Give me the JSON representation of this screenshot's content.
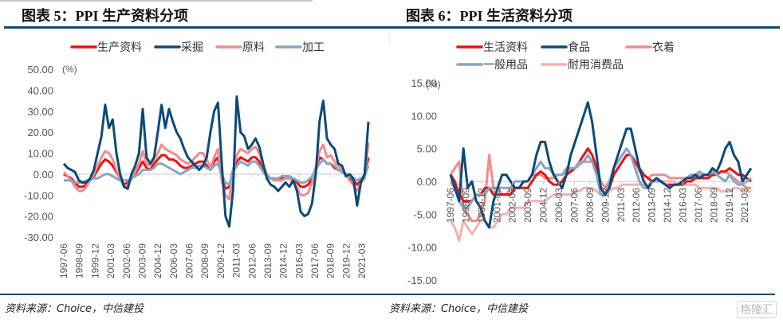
{
  "left": {
    "title": "图表 5：PPI 生产资料分项",
    "source": "资料来源：Choice，中信建投",
    "chart_data": {
      "type": "line",
      "title": "图表 5：PPI 生产资料分项",
      "ylabel": "(%)",
      "xlabel": "",
      "ylim": [
        -30,
        50
      ],
      "yticks": [
        "50.00",
        "40.00",
        "30.00",
        "20.00",
        "10.00",
        "0.00",
        "-10.00",
        "-20.00",
        "-30.00"
      ],
      "xticks": [
        "1997-06",
        "1998-09",
        "1999-12",
        "2001-03",
        "2002-06",
        "2003-09",
        "2004-12",
        "2006-03",
        "2007-06",
        "2008-09",
        "2009-12",
        "2011-03",
        "2012-06",
        "2013-09",
        "2014-12",
        "2016-03",
        "2017-06",
        "2018-09",
        "2019-12",
        "2021-03"
      ],
      "legend": "top-center",
      "x_start": "1997-06",
      "x_step": "quarter",
      "series": [
        {
          "name": "生产资料",
          "color": "#ee1111",
          "values": [
            0,
            -1,
            -2,
            -4,
            -6,
            -6,
            -5,
            -3,
            -1,
            2,
            5,
            7,
            6,
            4,
            1,
            -2,
            -5,
            -4,
            -2,
            0,
            3,
            6,
            3,
            2,
            5,
            7,
            9,
            9,
            7,
            7,
            6,
            4,
            3,
            3,
            4,
            5,
            6,
            6,
            4,
            2,
            6,
            8,
            -2,
            -7,
            -6,
            2,
            6,
            8,
            7,
            6,
            8,
            8,
            6,
            2,
            -1,
            -2,
            -2,
            -3,
            -2,
            -2,
            -1,
            -3,
            -4,
            -6,
            -6,
            -5,
            -2,
            3,
            8,
            7,
            5,
            5,
            3,
            2,
            1,
            0,
            -2,
            -3,
            -5,
            -3,
            -1,
            8
          ]
        },
        {
          "name": "采掘",
          "color": "#0b4a78",
          "values": [
            5,
            3,
            2,
            1,
            -3,
            -4,
            -4,
            -2,
            2,
            10,
            18,
            33,
            22,
            26,
            10,
            0,
            -6,
            -7,
            0,
            4,
            10,
            31,
            8,
            5,
            8,
            20,
            33,
            22,
            31,
            25,
            20,
            17,
            12,
            8,
            6,
            4,
            2,
            4,
            8,
            20,
            30,
            34,
            5,
            -20,
            -25,
            -8,
            37,
            20,
            18,
            12,
            14,
            17,
            13,
            5,
            -2,
            -5,
            -6,
            -8,
            -6,
            -4,
            -6,
            -3,
            -8,
            -18,
            -20,
            -19,
            -14,
            0,
            25,
            35,
            17,
            14,
            12,
            5,
            4,
            -1,
            0,
            -2,
            -15,
            -4,
            0,
            25
          ]
        },
        {
          "name": "原料",
          "color": "#f28b8b",
          "values": [
            1,
            -1,
            -3,
            -6,
            -8,
            -8,
            -6,
            -3,
            0,
            4,
            8,
            11,
            10,
            7,
            2,
            -2,
            -6,
            -5,
            -2,
            1,
            5,
            11,
            5,
            4,
            7,
            10,
            14,
            12,
            11,
            10,
            9,
            7,
            6,
            5,
            6,
            8,
            10,
            10,
            7,
            3,
            8,
            12,
            -3,
            -10,
            -12,
            2,
            9,
            12,
            11,
            10,
            12,
            13,
            10,
            4,
            0,
            -2,
            -3,
            -3,
            -3,
            -2,
            -2,
            -4,
            -6,
            -10,
            -10,
            -9,
            -4,
            3,
            11,
            14,
            8,
            9,
            6,
            4,
            2,
            0,
            -3,
            -5,
            -8,
            -4,
            -2,
            15
          ]
        },
        {
          "name": "加工",
          "color": "#86a6c2",
          "values": [
            -3,
            -3,
            -3,
            -4,
            -4,
            -4,
            -3,
            -3,
            -2,
            -2,
            -1,
            0,
            0,
            -1,
            -2,
            -3,
            -3,
            -3,
            -2,
            -1,
            0,
            2,
            2,
            2,
            3,
            5,
            5,
            4,
            3,
            2,
            1,
            0,
            1,
            2,
            3,
            3,
            4,
            4,
            3,
            2,
            4,
            5,
            0,
            -4,
            -5,
            1,
            4,
            6,
            5,
            4,
            6,
            6,
            4,
            1,
            -1,
            -2,
            -2,
            -2,
            -1,
            -1,
            -1,
            -2,
            -3,
            -4,
            -4,
            -3,
            -1,
            2,
            5,
            7,
            5,
            5,
            4,
            2,
            1,
            0,
            -1,
            -2,
            -3,
            -2,
            -1,
            4
          ]
        }
      ]
    }
  },
  "right": {
    "title": "图表 6：PPI 生活资料分项",
    "source": "资料来源：Choice，中信建投",
    "watermark": "格隆汇",
    "chart_data": {
      "type": "line",
      "title": "图表 6：PPI 生活资料分项",
      "ylabel": "(%)",
      "xlabel": "",
      "ylim": [
        -15,
        15
      ],
      "yticks": [
        "15.00",
        "10.00",
        "5.00",
        "0.00",
        "-5.00",
        "-10.00",
        "-15.00"
      ],
      "xticks": [
        "1997-06",
        "1998-09",
        "1999-12",
        "2001-03",
        "2002-06",
        "2003-09",
        "2004-12",
        "2006-03",
        "2007-06",
        "2008-09",
        "2009-12",
        "2011-03",
        "2012-06",
        "2013-09",
        "2014-12",
        "2016-03",
        "2017-06",
        "2018-09",
        "2019-12",
        "2021-03"
      ],
      "legend": "top-center",
      "x_start": "1997-06",
      "x_step": "quarter",
      "series": [
        {
          "name": "生活资料",
          "color": "#ee1111",
          "values": [
            1,
            0,
            -2,
            -3,
            -3,
            -3,
            -2,
            -2,
            -1,
            -1,
            -2,
            -2,
            -2,
            -2,
            -2,
            -1,
            -1,
            -1,
            -1,
            0,
            1,
            1.5,
            1,
            0,
            -0.5,
            -0.5,
            0,
            1,
            1.5,
            2,
            3,
            4,
            5,
            4,
            2,
            -1,
            -2,
            -1,
            1,
            2,
            3,
            4,
            4,
            3,
            2,
            1,
            0.5,
            0,
            0,
            0,
            -0.5,
            -0.5,
            -0.5,
            -0.5,
            -0.5,
            0,
            0,
            0.5,
            0.5,
            0.5,
            0.5,
            1,
            1,
            1.5,
            1.5,
            2,
            1.5,
            1,
            1,
            0.5,
            0
          ]
        },
        {
          "name": "食品",
          "color": "#0b4a78",
          "values": [
            1,
            -1,
            -3,
            5,
            -1,
            0,
            -3,
            -4,
            -6,
            -7,
            -3,
            -1,
            1,
            1,
            0,
            -1,
            -1,
            0,
            0,
            1,
            4,
            6,
            6,
            3,
            1,
            0,
            -1,
            1,
            4,
            6,
            8,
            10,
            12,
            9,
            4,
            -1,
            -2,
            -1,
            2,
            4,
            6,
            8,
            8,
            5,
            2,
            0,
            -1,
            0,
            0.5,
            0,
            -0.5,
            -1,
            -0.5,
            -0.5,
            0,
            0.5,
            0.5,
            1,
            0.5,
            1,
            1,
            2,
            1.5,
            3,
            5,
            6,
            4,
            3,
            0,
            1,
            2
          ]
        },
        {
          "name": "衣着",
          "color": "#f28b8b",
          "values": [
            1,
            2,
            3,
            -4,
            -5,
            -6,
            -6,
            -5,
            -3,
            4,
            -1,
            -1,
            -2,
            -2,
            -1,
            -1,
            -1,
            0,
            0,
            1,
            1,
            1,
            0.5,
            0.5,
            0.5,
            1,
            1,
            1.5,
            2,
            2,
            2.5,
            3,
            3,
            3,
            2,
            0,
            -1,
            0,
            1,
            2,
            3,
            4,
            4,
            3,
            1.5,
            1,
            0.5,
            1,
            1,
            1,
            1,
            0.5,
            0.5,
            0.5,
            0.5,
            0.5,
            1,
            1,
            1,
            0.5,
            0.5,
            1,
            1,
            1.5,
            1.5,
            1,
            0.5,
            0,
            -0.5,
            -1,
            -1
          ]
        },
        {
          "name": "一般用品",
          "color": "#86a6c2",
          "values": [
            0,
            -1,
            -3,
            -4,
            -4,
            -3,
            -2,
            -2,
            -2,
            -1,
            -1,
            -1,
            -1,
            -1,
            -1,
            0,
            0,
            0,
            0,
            1,
            2,
            3,
            2,
            2,
            1,
            1,
            1,
            2,
            2,
            2,
            3,
            3,
            4,
            3,
            1,
            -2,
            -2,
            0,
            2,
            3,
            4,
            5,
            4,
            2,
            0,
            -1,
            -1,
            0,
            0,
            0,
            -0.5,
            -1,
            -0.5,
            -0.5,
            0,
            0.5,
            1,
            1,
            1.5,
            1,
            1,
            1.5,
            1,
            0.5,
            0,
            1,
            0,
            -0.5,
            -0.5,
            0,
            0.5
          ]
        },
        {
          "name": "耐用消费品",
          "color": "#f6b0b0",
          "values": [
            -6,
            -7,
            -9,
            -6,
            -7,
            -8,
            -7,
            -6,
            -6,
            -7,
            -7,
            -6,
            -5,
            -5,
            -4,
            -4,
            -4,
            -4,
            -3,
            -3,
            -3,
            -3,
            -3,
            -2.5,
            -2,
            -2,
            -2,
            -2,
            -2,
            -1.5,
            -1.5,
            -1,
            -1,
            -1,
            -1.5,
            -2,
            -2,
            -1.5,
            -1,
            -1,
            -0.5,
            -0.5,
            -0.5,
            -0.5,
            -0.5,
            -0.5,
            -0.5,
            0,
            0,
            0,
            0,
            0,
            0,
            -0.5,
            -0.5,
            -0.5,
            -0.5,
            -0.5,
            -1,
            -1,
            -1,
            -1,
            -1,
            -1.5,
            -1.5,
            -1.5,
            -1,
            -1,
            -1.5,
            -1.5,
            -1.5
          ]
        }
      ]
    }
  }
}
